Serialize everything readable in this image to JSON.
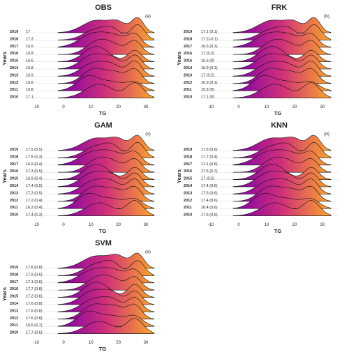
{
  "years": [
    "2019",
    "2018",
    "2017",
    "2016",
    "2015",
    "2014",
    "2013",
    "2012",
    "2011",
    "2010"
  ],
  "gradient": {
    "start": "#7a00a8",
    "mid": "#d0307a",
    "end": "#fba72a"
  },
  "chart_data": [
    {
      "type": "ridgeline",
      "title": "OBS",
      "panel_tag": "(a)",
      "xlabel": "TG",
      "ylabel": "Years",
      "xticks": [
        -10,
        0,
        10,
        20,
        30
      ],
      "xlim": [
        -10,
        35
      ],
      "year_labels": [
        "17",
        "17.3",
        "16.5",
        "16.8",
        "16.6",
        "16.8",
        "16.9",
        "16.8",
        "15.8",
        "17.1"
      ],
      "series": [
        {
          "year": "2019",
          "peaks": [
            [
              12,
              5,
              0.85
            ],
            [
              20,
              3,
              0.6
            ],
            [
              27,
              2.2,
              1.0
            ]
          ]
        },
        {
          "year": "2018",
          "peaks": [
            [
              12,
              4.5,
              0.7
            ],
            [
              18,
              3,
              0.55
            ],
            [
              27,
              2.5,
              1.0
            ]
          ]
        },
        {
          "year": "2017",
          "peaks": [
            [
              11,
              5,
              0.9
            ],
            [
              19,
              4,
              0.6
            ],
            [
              26,
              2.5,
              0.8
            ]
          ]
        },
        {
          "year": "2016",
          "peaks": [
            [
              12,
              4,
              0.8
            ],
            [
              18,
              4,
              0.6
            ],
            [
              26,
              2.5,
              0.9
            ]
          ]
        },
        {
          "year": "2015",
          "peaks": [
            [
              12,
              4.5,
              0.95
            ],
            [
              26,
              2.5,
              0.7
            ]
          ]
        },
        {
          "year": "2014",
          "peaks": [
            [
              11,
              4.5,
              0.9
            ],
            [
              18,
              3,
              0.5
            ],
            [
              26,
              2.5,
              0.85
            ]
          ]
        },
        {
          "year": "2013",
          "peaks": [
            [
              11,
              4.5,
              0.8
            ],
            [
              18,
              3.5,
              0.55
            ],
            [
              26,
              2.5,
              0.9
            ]
          ]
        },
        {
          "year": "2012",
          "peaks": [
            [
              11,
              4,
              0.85
            ],
            [
              19,
              3.5,
              0.6
            ],
            [
              26,
              2.5,
              0.8
            ]
          ]
        },
        {
          "year": "2011",
          "peaks": [
            [
              9,
              4,
              0.9
            ],
            [
              18,
              4,
              0.5
            ],
            [
              26,
              3,
              0.5
            ]
          ]
        },
        {
          "year": "2010",
          "peaks": [
            [
              13,
              5,
              0.7
            ],
            [
              26,
              3,
              0.75
            ]
          ]
        }
      ]
    },
    {
      "type": "ridgeline",
      "title": "FRK",
      "panel_tag": "(b)",
      "xlabel": "TG",
      "ylabel": "Years",
      "xticks": [
        -10,
        0,
        10,
        20,
        30
      ],
      "xlim": [
        -10,
        35
      ],
      "year_labels": [
        "17.1 (0.1)",
        "17.2(-0.1)",
        "16.6 (0.1)",
        "17 (0.2)",
        "16.6 (0)",
        "16.9 (0.1)",
        "17 (0.2)",
        "16.9 (0.1)",
        "15.8 (0)",
        "17.1 (0)"
      ],
      "series": [
        {
          "year": "2019",
          "peaks": [
            [
              12,
              5,
              0.85
            ],
            [
              20,
              3,
              0.6
            ],
            [
              27,
              2.2,
              1.0
            ]
          ]
        },
        {
          "year": "2018",
          "peaks": [
            [
              12,
              4.5,
              0.7
            ],
            [
              18,
              3,
              0.55
            ],
            [
              27,
              2.5,
              1.0
            ]
          ]
        },
        {
          "year": "2017",
          "peaks": [
            [
              11,
              5,
              0.9
            ],
            [
              19,
              4,
              0.6
            ],
            [
              26,
              2.5,
              0.8
            ]
          ]
        },
        {
          "year": "2016",
          "peaks": [
            [
              12,
              4,
              0.8
            ],
            [
              18,
              4,
              0.6
            ],
            [
              26,
              2.5,
              0.9
            ]
          ]
        },
        {
          "year": "2015",
          "peaks": [
            [
              12,
              4.5,
              0.95
            ],
            [
              26,
              2.5,
              0.7
            ]
          ]
        },
        {
          "year": "2014",
          "peaks": [
            [
              11,
              4.5,
              0.9
            ],
            [
              18,
              3,
              0.5
            ],
            [
              26,
              2.5,
              0.85
            ]
          ]
        },
        {
          "year": "2013",
          "peaks": [
            [
              11,
              4.5,
              0.8
            ],
            [
              18,
              3.5,
              0.55
            ],
            [
              26,
              2.5,
              0.9
            ]
          ]
        },
        {
          "year": "2012",
          "peaks": [
            [
              11,
              4,
              0.85
            ],
            [
              19,
              3.5,
              0.6
            ],
            [
              26,
              2.5,
              0.8
            ]
          ]
        },
        {
          "year": "2011",
          "peaks": [
            [
              9,
              4,
              0.9
            ],
            [
              18,
              4,
              0.5
            ],
            [
              26,
              3,
              0.5
            ]
          ]
        },
        {
          "year": "2010",
          "peaks": [
            [
              13,
              5,
              0.7
            ],
            [
              26,
              3,
              0.75
            ]
          ]
        }
      ]
    },
    {
      "type": "ridgeline",
      "title": "GAM",
      "panel_tag": "(c)",
      "xlabel": "TG",
      "ylabel": "Years",
      "xticks": [
        -10,
        0,
        10,
        20,
        30
      ],
      "xlim": [
        -10,
        35
      ],
      "year_labels": [
        "17.5 (0.5)",
        "17.5 (0.3)",
        "16.9 (0.4)",
        "17.3 (0.5)",
        "16.9 (0.4)",
        "17.4 (0.5)",
        "17.3 (0.5)",
        "17.2 (0.4)",
        "16.2 (0.4)",
        "17.4 (0.3)"
      ],
      "series": [
        {
          "year": "2019",
          "peaks": [
            [
              12,
              5,
              0.85
            ],
            [
              20,
              3,
              0.65
            ],
            [
              27,
              2.3,
              1.0
            ]
          ]
        },
        {
          "year": "2018",
          "peaks": [
            [
              12,
              4.5,
              0.75
            ],
            [
              18,
              3,
              0.6
            ],
            [
              27,
              2.5,
              1.0
            ]
          ]
        },
        {
          "year": "2017",
          "peaks": [
            [
              11,
              5,
              0.9
            ],
            [
              19,
              4,
              0.65
            ],
            [
              26,
              2.5,
              0.8
            ]
          ]
        },
        {
          "year": "2016",
          "peaks": [
            [
              12,
              4,
              0.8
            ],
            [
              18,
              4,
              0.65
            ],
            [
              26,
              2.5,
              0.9
            ]
          ]
        },
        {
          "year": "2015",
          "peaks": [
            [
              12,
              4.5,
              0.95
            ],
            [
              26,
              2.5,
              0.75
            ]
          ]
        },
        {
          "year": "2014",
          "peaks": [
            [
              11,
              4.5,
              0.9
            ],
            [
              18,
              3,
              0.55
            ],
            [
              26,
              2.5,
              0.85
            ]
          ]
        },
        {
          "year": "2013",
          "peaks": [
            [
              11,
              4.5,
              0.8
            ],
            [
              18,
              3.5,
              0.6
            ],
            [
              26,
              2.5,
              0.9
            ]
          ]
        },
        {
          "year": "2012",
          "peaks": [
            [
              11,
              4,
              0.85
            ],
            [
              19,
              3.5,
              0.65
            ],
            [
              26,
              2.5,
              0.8
            ]
          ]
        },
        {
          "year": "2011",
          "peaks": [
            [
              9,
              4,
              0.9
            ],
            [
              18,
              4,
              0.55
            ],
            [
              26,
              3,
              0.55
            ]
          ]
        },
        {
          "year": "2010",
          "peaks": [
            [
              13,
              5,
              0.7
            ],
            [
              26,
              3,
              0.8
            ]
          ]
        }
      ]
    },
    {
      "type": "ridgeline",
      "title": "KNN",
      "panel_tag": "(d)",
      "xlabel": "TG",
      "ylabel": "Years",
      "xticks": [
        -10,
        0,
        10,
        20,
        30
      ],
      "xlim": [
        -10,
        35
      ],
      "year_labels": [
        "17.6 (0.6)",
        "17.7 (0.4)",
        "17.1 (0.6)",
        "17.5 (0.7)",
        "17 (0.5)",
        "17.4 (0.6)",
        "17.5 (0.6)",
        "17.4 (0.6)",
        "16.4 (0.6)",
        "17.6 (0.5)"
      ],
      "series": [
        {
          "year": "2019",
          "peaks": [
            [
              12,
              5,
              0.85
            ],
            [
              20,
              3,
              0.65
            ],
            [
              27,
              2.3,
              1.0
            ]
          ]
        },
        {
          "year": "2018",
          "peaks": [
            [
              12,
              4.5,
              0.75
            ],
            [
              18,
              3,
              0.6
            ],
            [
              27,
              2.5,
              1.0
            ]
          ]
        },
        {
          "year": "2017",
          "peaks": [
            [
              11,
              5,
              0.9
            ],
            [
              19,
              4,
              0.65
            ],
            [
              26,
              2.5,
              0.8
            ]
          ]
        },
        {
          "year": "2016",
          "peaks": [
            [
              12,
              4,
              0.8
            ],
            [
              18,
              4,
              0.65
            ],
            [
              26,
              2.5,
              0.9
            ]
          ]
        },
        {
          "year": "2015",
          "peaks": [
            [
              12,
              4.5,
              0.95
            ],
            [
              26,
              2.5,
              0.75
            ]
          ]
        },
        {
          "year": "2014",
          "peaks": [
            [
              11,
              4.5,
              0.9
            ],
            [
              18,
              3,
              0.55
            ],
            [
              26,
              2.5,
              0.85
            ]
          ]
        },
        {
          "year": "2013",
          "peaks": [
            [
              11,
              4.5,
              0.8
            ],
            [
              18,
              3.5,
              0.6
            ],
            [
              26,
              2.5,
              0.9
            ]
          ]
        },
        {
          "year": "2012",
          "peaks": [
            [
              11,
              4,
              0.85
            ],
            [
              19,
              3.5,
              0.65
            ],
            [
              26,
              2.5,
              0.8
            ]
          ]
        },
        {
          "year": "2011",
          "peaks": [
            [
              9,
              4,
              0.9
            ],
            [
              18,
              4,
              0.55
            ],
            [
              26,
              3,
              0.55
            ]
          ]
        },
        {
          "year": "2010",
          "peaks": [
            [
              13,
              5,
              0.7
            ],
            [
              26,
              3,
              0.8
            ]
          ]
        }
      ]
    },
    {
      "type": "ridgeline",
      "title": "SVM",
      "panel_tag": "(e)",
      "xlabel": "TG",
      "ylabel": "Years",
      "xticks": [
        -10,
        0,
        10,
        20,
        30
      ],
      "xlim": [
        -10,
        35
      ],
      "year_labels": [
        "17.8 (0.8)",
        "17.9 (0.6)",
        "17.1 (0.6)",
        "17.7 (0.8)",
        "17.2 (0.6)",
        "17.6 (0.8)",
        "17.6 (0.8)",
        "17.6 (0.8)",
        "16.5 (0.7)",
        "17.7 (0.6)"
      ],
      "series": [
        {
          "year": "2019",
          "peaks": [
            [
              12,
              5,
              0.85
            ],
            [
              20,
              3,
              0.7
            ],
            [
              27,
              2.3,
              1.0
            ]
          ]
        },
        {
          "year": "2018",
          "peaks": [
            [
              12,
              4.5,
              0.75
            ],
            [
              18,
              3,
              0.65
            ],
            [
              27,
              2.5,
              1.0
            ]
          ]
        },
        {
          "year": "2017",
          "peaks": [
            [
              11,
              5,
              0.9
            ],
            [
              19,
              4,
              0.7
            ],
            [
              26,
              2.5,
              0.8
            ]
          ]
        },
        {
          "year": "2016",
          "peaks": [
            [
              12,
              4,
              0.8
            ],
            [
              18,
              4,
              0.7
            ],
            [
              26,
              2.5,
              0.9
            ]
          ]
        },
        {
          "year": "2015",
          "peaks": [
            [
              12,
              4.5,
              0.95
            ],
            [
              26,
              2.5,
              0.8
            ]
          ]
        },
        {
          "year": "2014",
          "peaks": [
            [
              11,
              4.5,
              0.9
            ],
            [
              18,
              3,
              0.6
            ],
            [
              26,
              2.5,
              0.85
            ]
          ]
        },
        {
          "year": "2013",
          "peaks": [
            [
              11,
              4.5,
              0.8
            ],
            [
              18,
              3.5,
              0.65
            ],
            [
              26,
              2.5,
              0.9
            ]
          ]
        },
        {
          "year": "2012",
          "peaks": [
            [
              11,
              4,
              0.85
            ],
            [
              19,
              3.5,
              0.7
            ],
            [
              26,
              2.5,
              0.8
            ]
          ]
        },
        {
          "year": "2011",
          "peaks": [
            [
              9,
              4,
              0.9
            ],
            [
              18,
              4,
              0.6
            ],
            [
              26,
              3,
              0.6
            ]
          ]
        },
        {
          "year": "2010",
          "peaks": [
            [
              13,
              5,
              0.7
            ],
            [
              26,
              3,
              0.85
            ]
          ]
        }
      ]
    }
  ]
}
